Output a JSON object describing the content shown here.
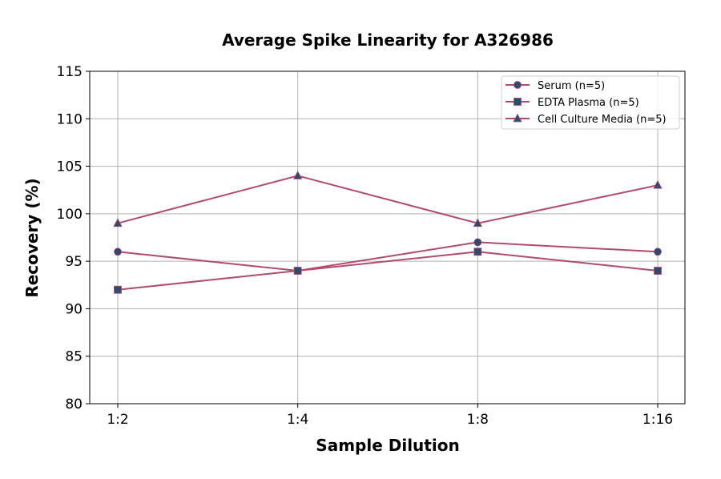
{
  "chart_data": {
    "type": "line",
    "title": "Average Spike Linearity for A326986",
    "xlabel": "Sample Dilution",
    "ylabel": "Recovery (%)",
    "categories": [
      "1:2",
      "1:4",
      "1:8",
      "1:16"
    ],
    "ylim": [
      80,
      115
    ],
    "yticks": [
      80,
      85,
      90,
      95,
      100,
      105,
      110,
      115
    ],
    "grid": true,
    "legend_position": "top-right",
    "line_color": "#b04a6e",
    "marker_color": "#2e4a6e",
    "series": [
      {
        "name": "Serum (n=5)",
        "marker": "circle",
        "values": [
          96,
          94,
          97,
          96
        ]
      },
      {
        "name": "EDTA Plasma (n=5)",
        "marker": "square",
        "values": [
          92,
          94,
          96,
          94
        ]
      },
      {
        "name": "Cell Culture Media (n=5)",
        "marker": "triangle",
        "values": [
          99,
          104,
          99,
          103
        ]
      }
    ]
  }
}
